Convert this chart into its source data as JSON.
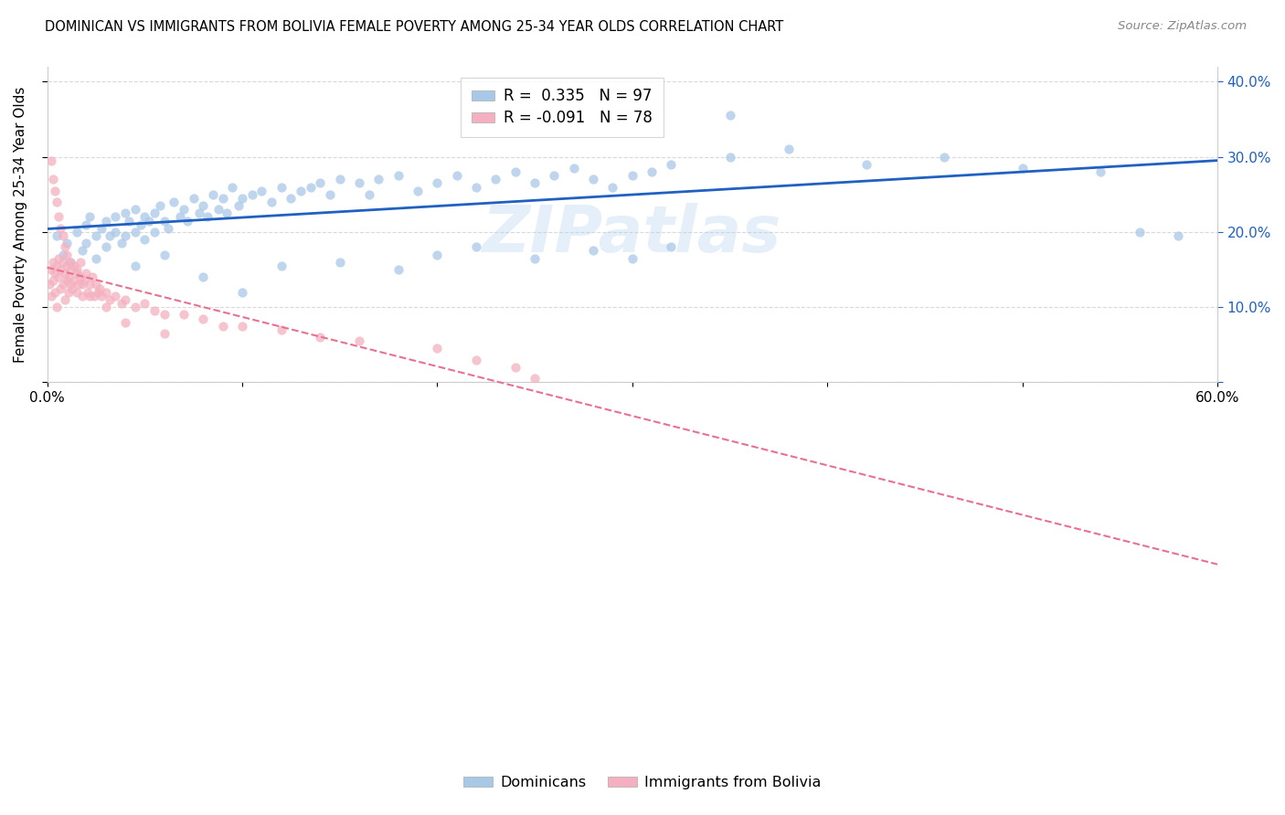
{
  "title": "DOMINICAN VS IMMIGRANTS FROM BOLIVIA FEMALE POVERTY AMONG 25-34 YEAR OLDS CORRELATION CHART",
  "source": "Source: ZipAtlas.com",
  "ylabel": "Female Poverty Among 25-34 Year Olds",
  "xlim": [
    0.0,
    0.6
  ],
  "ylim": [
    0.0,
    0.42
  ],
  "xtick_vals": [
    0.0,
    0.1,
    0.2,
    0.3,
    0.4,
    0.5,
    0.6
  ],
  "xtick_labels": [
    "0.0%",
    "",
    "",
    "",
    "",
    "",
    "60.0%"
  ],
  "ytick_vals": [
    0.0,
    0.1,
    0.2,
    0.3,
    0.4
  ],
  "ytick_labels_left": [
    "",
    "",
    "",
    "",
    ""
  ],
  "ytick_labels_right": [
    "",
    "10.0%",
    "20.0%",
    "30.0%",
    "40.0%"
  ],
  "blue_color": "#a8c8e8",
  "pink_color": "#f4b0c0",
  "blue_line_color": "#2060c0",
  "pink_line_color": "#e87090",
  "r1": 0.335,
  "n1": 97,
  "r2": -0.091,
  "n2": 78,
  "watermark": "ZIPatlas",
  "background_color": "#ffffff",
  "grid_color": "#d0d0d0",
  "dom_x": [
    0.005,
    0.008,
    0.01,
    0.012,
    0.015,
    0.018,
    0.02,
    0.02,
    0.022,
    0.025,
    0.025,
    0.028,
    0.03,
    0.03,
    0.032,
    0.035,
    0.035,
    0.038,
    0.04,
    0.04,
    0.042,
    0.045,
    0.045,
    0.048,
    0.05,
    0.05,
    0.052,
    0.055,
    0.055,
    0.058,
    0.06,
    0.062,
    0.065,
    0.068,
    0.07,
    0.072,
    0.075,
    0.078,
    0.08,
    0.082,
    0.085,
    0.088,
    0.09,
    0.092,
    0.095,
    0.098,
    0.1,
    0.105,
    0.11,
    0.115,
    0.12,
    0.125,
    0.13,
    0.135,
    0.14,
    0.145,
    0.15,
    0.16,
    0.165,
    0.17,
    0.18,
    0.19,
    0.2,
    0.21,
    0.22,
    0.23,
    0.24,
    0.25,
    0.26,
    0.27,
    0.28,
    0.29,
    0.3,
    0.31,
    0.32,
    0.35,
    0.38,
    0.42,
    0.46,
    0.5,
    0.54,
    0.56,
    0.58,
    0.045,
    0.06,
    0.08,
    0.1,
    0.12,
    0.15,
    0.18,
    0.2,
    0.22,
    0.25,
    0.28,
    0.3,
    0.32,
    0.35
  ],
  "dom_y": [
    0.195,
    0.17,
    0.185,
    0.16,
    0.2,
    0.175,
    0.21,
    0.185,
    0.22,
    0.195,
    0.165,
    0.205,
    0.215,
    0.18,
    0.195,
    0.22,
    0.2,
    0.185,
    0.225,
    0.195,
    0.215,
    0.23,
    0.2,
    0.21,
    0.22,
    0.19,
    0.215,
    0.225,
    0.2,
    0.235,
    0.215,
    0.205,
    0.24,
    0.22,
    0.23,
    0.215,
    0.245,
    0.225,
    0.235,
    0.22,
    0.25,
    0.23,
    0.245,
    0.225,
    0.26,
    0.235,
    0.245,
    0.25,
    0.255,
    0.24,
    0.26,
    0.245,
    0.255,
    0.26,
    0.265,
    0.25,
    0.27,
    0.265,
    0.25,
    0.27,
    0.275,
    0.255,
    0.265,
    0.275,
    0.26,
    0.27,
    0.28,
    0.265,
    0.275,
    0.285,
    0.27,
    0.26,
    0.275,
    0.28,
    0.29,
    0.3,
    0.31,
    0.29,
    0.3,
    0.285,
    0.28,
    0.2,
    0.195,
    0.155,
    0.17,
    0.14,
    0.12,
    0.155,
    0.16,
    0.15,
    0.17,
    0.18,
    0.165,
    0.175,
    0.165,
    0.18,
    0.355
  ],
  "bol_x": [
    0.001,
    0.002,
    0.002,
    0.003,
    0.003,
    0.004,
    0.004,
    0.005,
    0.005,
    0.006,
    0.006,
    0.007,
    0.007,
    0.008,
    0.008,
    0.009,
    0.009,
    0.01,
    0.01,
    0.011,
    0.011,
    0.012,
    0.012,
    0.013,
    0.014,
    0.014,
    0.015,
    0.015,
    0.016,
    0.017,
    0.017,
    0.018,
    0.019,
    0.02,
    0.021,
    0.022,
    0.023,
    0.024,
    0.025,
    0.026,
    0.027,
    0.028,
    0.03,
    0.032,
    0.035,
    0.038,
    0.04,
    0.045,
    0.05,
    0.055,
    0.06,
    0.07,
    0.08,
    0.09,
    0.1,
    0.12,
    0.14,
    0.16,
    0.2,
    0.22,
    0.24,
    0.25,
    0.002,
    0.003,
    0.004,
    0.005,
    0.006,
    0.007,
    0.008,
    0.009,
    0.01,
    0.012,
    0.015,
    0.018,
    0.022,
    0.03,
    0.04,
    0.06
  ],
  "bol_y": [
    0.13,
    0.15,
    0.115,
    0.135,
    0.16,
    0.12,
    0.145,
    0.155,
    0.1,
    0.14,
    0.165,
    0.125,
    0.15,
    0.13,
    0.16,
    0.11,
    0.145,
    0.135,
    0.155,
    0.12,
    0.14,
    0.13,
    0.15,
    0.125,
    0.135,
    0.155,
    0.12,
    0.145,
    0.13,
    0.14,
    0.16,
    0.115,
    0.135,
    0.145,
    0.12,
    0.13,
    0.14,
    0.115,
    0.13,
    0.12,
    0.125,
    0.115,
    0.12,
    0.11,
    0.115,
    0.105,
    0.11,
    0.1,
    0.105,
    0.095,
    0.09,
    0.09,
    0.085,
    0.075,
    0.075,
    0.07,
    0.06,
    0.055,
    0.045,
    0.03,
    0.02,
    0.005,
    0.295,
    0.27,
    0.255,
    0.24,
    0.22,
    0.205,
    0.195,
    0.18,
    0.17,
    0.16,
    0.15,
    0.13,
    0.115,
    0.1,
    0.08,
    0.065
  ]
}
